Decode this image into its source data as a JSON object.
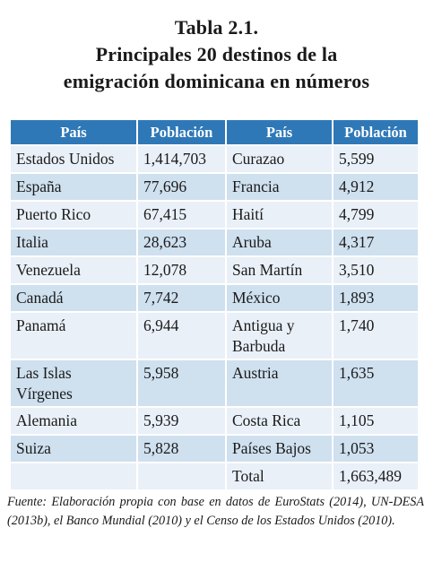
{
  "title": {
    "line1": "Tabla 2.1.",
    "line2": "Principales 20 destinos de la",
    "line3": "emigración dominicana en números"
  },
  "table": {
    "headers": [
      "País",
      "Población",
      "País",
      "Población"
    ],
    "rows": [
      [
        "Estados Unidos",
        "1,414,703",
        "Curazao",
        "5,599"
      ],
      [
        "España",
        "77,696",
        "Francia",
        "4,912"
      ],
      [
        "Puerto Rico",
        "67,415",
        "Haití",
        "4,799"
      ],
      [
        "Italia",
        "28,623",
        "Aruba",
        "4,317"
      ],
      [
        "Venezuela",
        "12,078",
        "San Martín",
        "3,510"
      ],
      [
        "Canadá",
        "7,742",
        "México",
        "1,893"
      ],
      [
        "Panamá",
        "6,944",
        "Antigua y Barbuda",
        "1,740"
      ],
      [
        "Las Islas Vírgenes",
        "5,958",
        "Austria",
        "1,635"
      ],
      [
        "Alemania",
        "5,939",
        "Costa Rica",
        "1,105"
      ],
      [
        "Suiza",
        "5,828",
        "Países Bajos",
        "1,053"
      ],
      [
        "",
        "",
        "Total",
        "1,663,489"
      ]
    ]
  },
  "footnote": "Fuente: Elaboración propia con base en datos de EuroStats (2014), UN-DESA (2013b), el Banco Mundial (2010) y el Censo de los Estados Unidos (2010).",
  "colors": {
    "header_bg": "#2f78b7",
    "row_light": "#e9f0f8",
    "row_dark": "#cfe0ef"
  }
}
